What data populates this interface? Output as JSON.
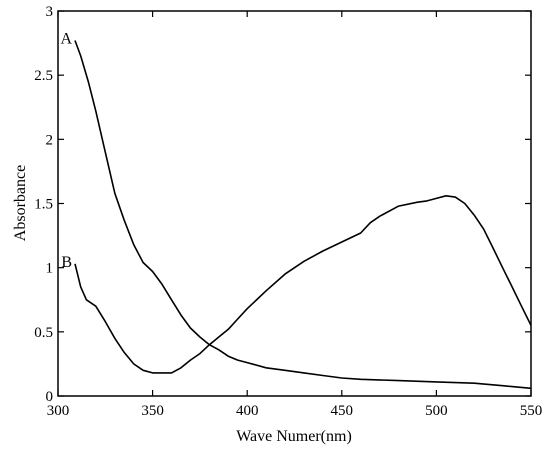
{
  "chart_data": {
    "type": "line",
    "title": "",
    "xlabel": "Wave Numer(nm)",
    "ylabel": "Absorbance",
    "xlim": [
      300,
      550
    ],
    "ylim": [
      0,
      3
    ],
    "x_ticks": [
      "300",
      "350",
      "400",
      "450",
      "500",
      "550"
    ],
    "y_ticks": [
      "0",
      "0.5",
      "1",
      "1.5",
      "2",
      "2.5",
      "3"
    ],
    "grid": false,
    "legend": "none",
    "line_color": "#000000",
    "series": [
      {
        "label": "A",
        "points": [
          [
            309,
            2.77
          ],
          [
            312,
            2.65
          ],
          [
            316,
            2.45
          ],
          [
            320,
            2.22
          ],
          [
            325,
            1.9
          ],
          [
            330,
            1.58
          ],
          [
            335,
            1.37
          ],
          [
            340,
            1.18
          ],
          [
            345,
            1.04
          ],
          [
            350,
            0.97
          ],
          [
            355,
            0.87
          ],
          [
            360,
            0.75
          ],
          [
            365,
            0.63
          ],
          [
            370,
            0.53
          ],
          [
            375,
            0.46
          ],
          [
            380,
            0.4
          ],
          [
            385,
            0.36
          ],
          [
            390,
            0.31
          ],
          [
            395,
            0.28
          ],
          [
            400,
            0.26
          ],
          [
            410,
            0.22
          ],
          [
            420,
            0.2
          ],
          [
            430,
            0.18
          ],
          [
            440,
            0.16
          ],
          [
            450,
            0.14
          ],
          [
            460,
            0.13
          ],
          [
            480,
            0.12
          ],
          [
            500,
            0.11
          ],
          [
            520,
            0.1
          ],
          [
            535,
            0.08
          ],
          [
            550,
            0.06
          ]
        ]
      },
      {
        "label": "B",
        "points": [
          [
            309,
            1.03
          ],
          [
            312,
            0.85
          ],
          [
            315,
            0.75
          ],
          [
            320,
            0.7
          ],
          [
            325,
            0.58
          ],
          [
            330,
            0.45
          ],
          [
            335,
            0.34
          ],
          [
            340,
            0.25
          ],
          [
            345,
            0.2
          ],
          [
            350,
            0.18
          ],
          [
            355,
            0.18
          ],
          [
            360,
            0.18
          ],
          [
            365,
            0.22
          ],
          [
            370,
            0.28
          ],
          [
            375,
            0.33
          ],
          [
            380,
            0.4
          ],
          [
            385,
            0.46
          ],
          [
            390,
            0.52
          ],
          [
            395,
            0.6
          ],
          [
            400,
            0.68
          ],
          [
            410,
            0.82
          ],
          [
            420,
            0.95
          ],
          [
            430,
            1.05
          ],
          [
            440,
            1.13
          ],
          [
            450,
            1.2
          ],
          [
            460,
            1.27
          ],
          [
            465,
            1.35
          ],
          [
            470,
            1.4
          ],
          [
            480,
            1.48
          ],
          [
            490,
            1.51
          ],
          [
            495,
            1.52
          ],
          [
            500,
            1.54
          ],
          [
            505,
            1.56
          ],
          [
            510,
            1.55
          ],
          [
            515,
            1.5
          ],
          [
            520,
            1.41
          ],
          [
            525,
            1.3
          ],
          [
            530,
            1.15
          ],
          [
            535,
            1.0
          ],
          [
            540,
            0.85
          ],
          [
            545,
            0.7
          ],
          [
            550,
            0.55
          ]
        ]
      }
    ]
  }
}
